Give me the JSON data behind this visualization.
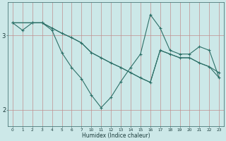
{
  "xlabel": "Humidex (Indice chaleur)",
  "bg_color": "#cce8e8",
  "line_color": "#2d7068",
  "grid_color": "#c09090",
  "xtick_labels": [
    "0",
    "1",
    "2",
    "3",
    "4",
    "5",
    "6",
    "7",
    "10",
    "11",
    "12",
    "13",
    "14",
    "15",
    "16",
    "17",
    "18",
    "19",
    "20",
    "21",
    "22",
    "23"
  ],
  "yticks": [
    2,
    3
  ],
  "ytick_labels": [
    "2",
    "3"
  ],
  "ylim": [
    1.78,
    3.45
  ],
  "xlim": [
    -0.5,
    21.5
  ],
  "line1_y": [
    3.17,
    3.07,
    3.17,
    3.17,
    3.07,
    2.77,
    2.57,
    2.42,
    2.2,
    2.03,
    2.17,
    2.38,
    2.57,
    2.75,
    3.28,
    3.1,
    2.8,
    2.75,
    2.75,
    2.85,
    2.8,
    2.43
  ],
  "line2_y": [
    3.17,
    null,
    3.17,
    3.17,
    3.1,
    3.03,
    2.97,
    2.9,
    2.77,
    2.7,
    2.63,
    2.57,
    2.5,
    2.43,
    2.37,
    2.8,
    2.75,
    2.7,
    2.7,
    2.63,
    2.58,
    2.5
  ],
  "line3_y": [
    3.17,
    null,
    3.17,
    3.17,
    3.1,
    3.03,
    2.97,
    2.9,
    2.77,
    2.7,
    2.63,
    2.57,
    2.5,
    2.43,
    2.37,
    2.8,
    2.75,
    2.7,
    2.7,
    2.63,
    2.58,
    2.43
  ],
  "figsize": [
    3.2,
    2.0
  ],
  "dpi": 100
}
